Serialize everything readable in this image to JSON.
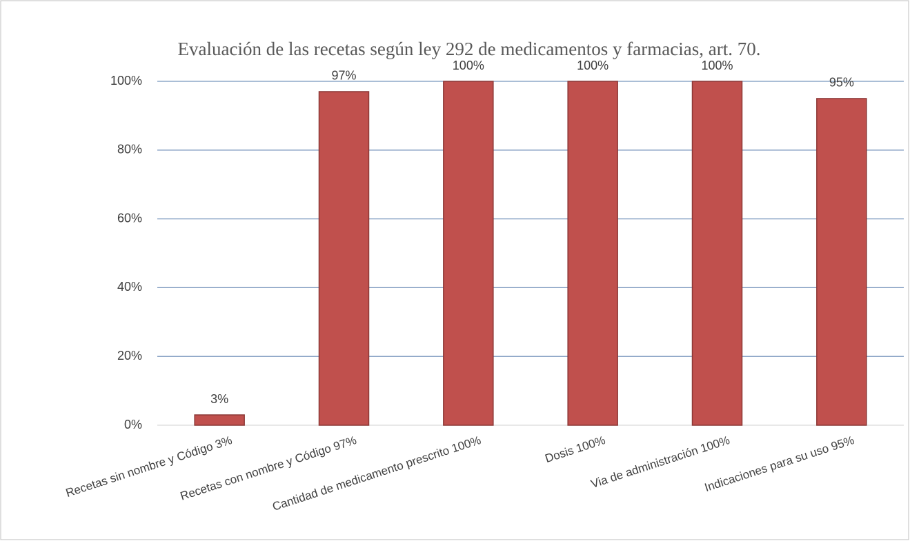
{
  "chart_data": {
    "type": "bar",
    "title": "Evaluación  de las recetas según ley 292 de medicamentos y farmacias, art. 70.",
    "categories": [
      "Recetas sin nombre y  Código  3%",
      "Recetas con nombre y  Código  97%",
      "Cantidad de medicamento prescrito  100%",
      "Dosis 100%",
      "Via de administración   100%",
      "Indicaciones para su uso 95%"
    ],
    "values": [
      3,
      97,
      100,
      100,
      100,
      95
    ],
    "value_labels": [
      "3%",
      "97%",
      "100%",
      "100%",
      "100%",
      "95%"
    ],
    "color": "#c0504d",
    "ylim": [
      0,
      100
    ],
    "yticks": [
      {
        "value": 0,
        "label": "0%"
      },
      {
        "value": 20,
        "label": "20%"
      },
      {
        "value": 40,
        "label": "40%"
      },
      {
        "value": 60,
        "label": "60%"
      },
      {
        "value": 80,
        "label": "80%"
      },
      {
        "value": 100,
        "label": "100%"
      }
    ],
    "grid": true
  }
}
